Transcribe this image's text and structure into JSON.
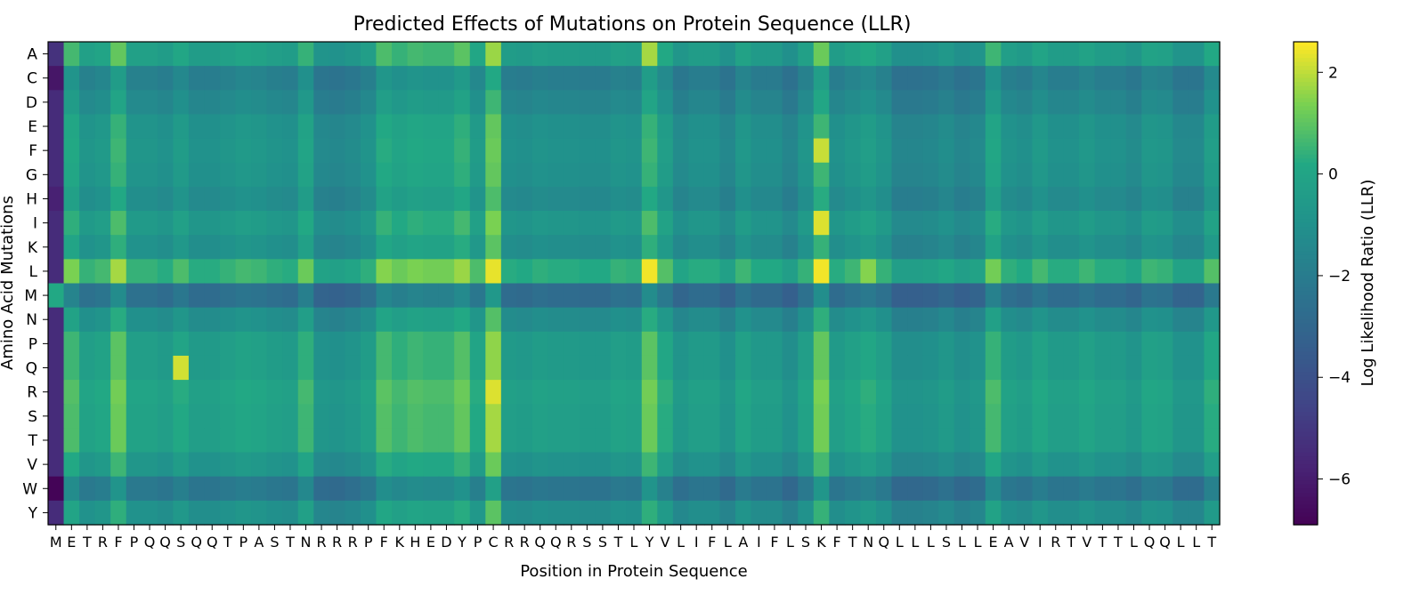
{
  "chart_data": {
    "type": "heatmap",
    "title": "Predicted Effects of Mutations on Protein Sequence (LLR)",
    "xlabel": "Position in Protein Sequence",
    "ylabel": "Amino Acid Mutations",
    "x_categories": [
      "M",
      "E",
      "T",
      "R",
      "F",
      "P",
      "Q",
      "Q",
      "S",
      "Q",
      "Q",
      "T",
      "P",
      "A",
      "S",
      "T",
      "N",
      "R",
      "R",
      "R",
      "P",
      "F",
      "K",
      "H",
      "E",
      "D",
      "Y",
      "P",
      "C",
      "R",
      "R",
      "Q",
      "Q",
      "R",
      "S",
      "S",
      "T",
      "L",
      "Y",
      "V",
      "L",
      "I",
      "F",
      "L",
      "A",
      "I",
      "F",
      "L",
      "S",
      "K",
      "F",
      "T",
      "N",
      "Q",
      "L",
      "L",
      "L",
      "S",
      "L",
      "L",
      "E",
      "A",
      "V",
      "I",
      "R",
      "T",
      "V",
      "T",
      "T",
      "L",
      "Q",
      "Q",
      "L",
      "L",
      "T"
    ],
    "y_categories": [
      "A",
      "C",
      "D",
      "E",
      "F",
      "G",
      "H",
      "I",
      "K",
      "L",
      "M",
      "N",
      "P",
      "Q",
      "R",
      "S",
      "T",
      "V",
      "W",
      "Y"
    ],
    "colorscale": "viridis",
    "value_range": [
      -6.9,
      2.6
    ],
    "colorbar": {
      "label": "Log Likelihood Ratio (LLR)",
      "ticks": [
        2,
        0,
        -2,
        -4,
        -6
      ],
      "tick_labels": [
        "2",
        "0",
        "−2",
        "−4",
        "−6"
      ]
    },
    "approximation": {
      "note": "approximate per-cell values read from image",
      "col_offsets": [
        -5.0,
        0.8,
        -0.1,
        0.1,
        1.2,
        -0.1,
        -0.1,
        -0.3,
        0.2,
        -0.3,
        -0.3,
        -0.1,
        0.1,
        0.0,
        -0.2,
        -0.3,
        0.6,
        -0.7,
        -0.8,
        -0.6,
        -0.2,
        0.9,
        0.6,
        0.8,
        0.7,
        0.7,
        1.1,
        0.2,
        1.8,
        -0.3,
        -0.4,
        -0.2,
        -0.3,
        -0.3,
        -0.4,
        -0.4,
        -0.1,
        -0.2,
        1.2,
        0.3,
        -0.6,
        -0.3,
        -0.3,
        -0.8,
        0.0,
        -0.4,
        -0.4,
        -0.9,
        -0.1,
        1.3,
        -0.3,
        0.0,
        0.3,
        -0.1,
        -0.9,
        -0.9,
        -0.8,
        -0.5,
        -0.9,
        -0.7,
        0.7,
        -0.2,
        -0.4,
        0.1,
        -0.3,
        -0.3,
        0.0,
        -0.3,
        -0.3,
        -0.6,
        0.0,
        -0.1,
        -0.7,
        -0.7,
        0.3
      ],
      "row_offsets": [
        0.3,
        -1.2,
        -0.8,
        -0.3,
        -0.2,
        -0.3,
        -0.6,
        0.0,
        -0.4,
        1.0,
        -2.0,
        -0.5,
        0.2,
        0.2,
        0.5,
        0.4,
        0.4,
        -0.2,
        -1.6,
        -0.4
      ],
      "row_col_cells": [
        [
          4,
          49,
          1.6
        ],
        [
          9,
          38,
          1.4
        ],
        [
          9,
          49,
          1.6
        ],
        [
          9,
          52,
          1.2
        ],
        [
          13,
          8,
          1.6
        ],
        [
          14,
          28,
          0.6
        ],
        [
          7,
          49,
          1.0
        ],
        [
          0,
          38,
          0.6
        ]
      ]
    }
  }
}
